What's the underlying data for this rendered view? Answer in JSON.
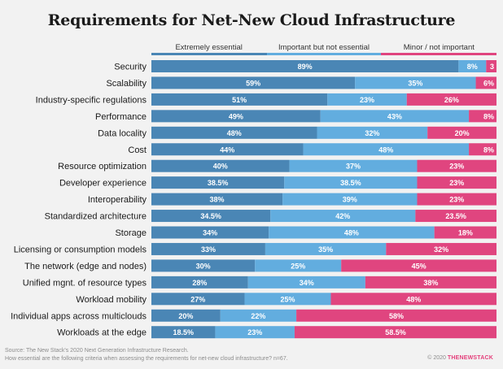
{
  "chart_data": {
    "type": "bar",
    "stacked": true,
    "orientation": "horizontal",
    "title": "Requirements for Net-New Cloud Infrastructure",
    "xlim": [
      0,
      100
    ],
    "legend_position": "top",
    "categories": [
      "Security",
      "Scalability",
      "Industry-specific regulations",
      "Performance",
      "Data locality",
      "Cost",
      "Resource optimization",
      "Developer experience",
      "Interoperability",
      "Standardized architecture",
      "Storage",
      "Licensing or consumption models",
      "The network (edge and nodes)",
      "Unified mgnt. of resource types",
      "Workload mobility",
      "Individual apps across multiclouds",
      "Workloads at the edge"
    ],
    "series": [
      {
        "name": "Extremely essential",
        "color": "#4a86b5",
        "values": [
          89,
          59,
          51,
          49,
          48,
          44,
          40,
          38.5,
          38,
          34.5,
          34,
          33,
          30,
          28,
          27,
          20,
          18.5
        ],
        "labels": [
          "89%",
          "59%",
          "51%",
          "49%",
          "48%",
          "44%",
          "40%",
          "38.5%",
          "38%",
          "34.5%",
          "34%",
          "33%",
          "30%",
          "28%",
          "27%",
          "20%",
          "18.5%"
        ]
      },
      {
        "name": "Important but not essential",
        "color": "#62addf",
        "values": [
          8,
          35,
          23,
          43,
          32,
          48,
          37,
          38.5,
          39,
          42,
          48,
          35,
          25,
          34,
          25,
          22,
          23
        ],
        "labels": [
          "8%",
          "35%",
          "23%",
          "43%",
          "32%",
          "48%",
          "37%",
          "38.5%",
          "39%",
          "42%",
          "48%",
          "35%",
          "25%",
          "34%",
          "25%",
          "22%",
          "23%"
        ]
      },
      {
        "name": "Minor / not important",
        "color": "#e0457f",
        "values": [
          3,
          6,
          26,
          8,
          20,
          8,
          23,
          23,
          23,
          23.5,
          18,
          32,
          45,
          38,
          48,
          58,
          58.5
        ],
        "labels": [
          "3",
          "6%",
          "26%",
          "8%",
          "20%",
          "8%",
          "23%",
          "23%",
          "23%",
          "23.5%",
          "18%",
          "32%",
          "45%",
          "38%",
          "48%",
          "58%",
          "58.5%"
        ]
      }
    ]
  },
  "source": {
    "line1": "Source: The New Stack's 2020 Next Generation Infrastructure Research.",
    "line2": "How essential are the following criteria when assessing the requirements for net-new cloud infrastructure? n=67."
  },
  "brand": {
    "copyright": "© 2020",
    "logo": "THENEWSTACK"
  }
}
